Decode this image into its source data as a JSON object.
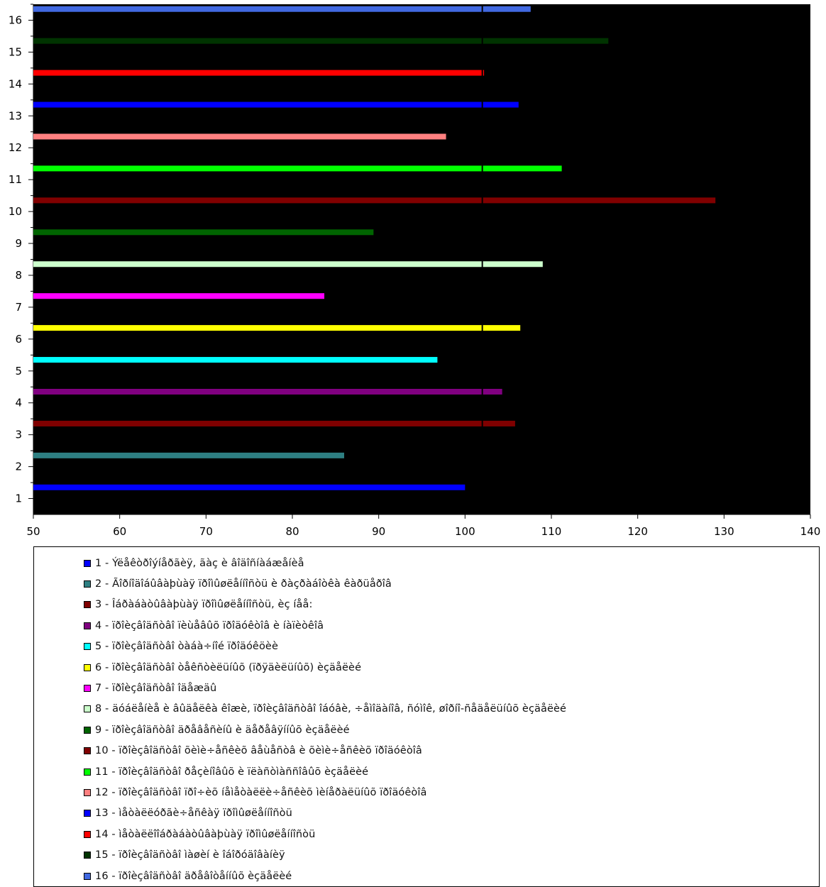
{
  "chart_data": {
    "type": "bar",
    "orientation": "horizontal",
    "background": "#000000",
    "xlim": [
      50,
      140
    ],
    "x_ticks": [
      50,
      60,
      70,
      80,
      90,
      100,
      110,
      120,
      130,
      140
    ],
    "x_tick_labels": [
      "50",
      "60",
      "70",
      "80",
      "90",
      "100",
      "110",
      "120",
      "130",
      "140"
    ],
    "categories": [
      "1",
      "2",
      "3",
      "4",
      "5",
      "6",
      "7",
      "8",
      "9",
      "10",
      "11",
      "12",
      "13",
      "14",
      "15",
      "16"
    ],
    "values": [
      100.0,
      86.0,
      105.8,
      104.3,
      96.8,
      106.4,
      83.7,
      109.0,
      89.4,
      129.0,
      111.2,
      97.8,
      106.2,
      102.2,
      116.6,
      107.6
    ],
    "colors": [
      "#0000ff",
      "#2e7f82",
      "#7f0000",
      "#800080",
      "#00ffff",
      "#ffff00",
      "#ff00ff",
      "#ccffcc",
      "#006400",
      "#800000",
      "#00ff00",
      "#ff8080",
      "#0000ff",
      "#ff0000",
      "#003300",
      "#4169e1"
    ],
    "reference_x": 102,
    "legend": {
      "placement": "bottom",
      "entries": [
        "1 - Ýëåêòðîýíåðãèÿ, ãàç è âîäîñíàáæåíèå",
        "2 - Ãîðíîäîáûâàþùàÿ ïðîìûøëåííîñòü è ðàçðàáîòêà êàðüåðîâ",
        "3 - Îáðàáàòûâàþùàÿ ïðîìûøëåííîñòü, èç íåå:",
        "4 - ïðîèçâîäñòâî ïèùåâûõ ïðîäóêòîâ è íàïèòêîâ",
        "5 - ïðîèçâîäñòâî òàáà÷íîé ïðîäóêöèè",
        "6 - ïðîèçâîäñòâî òåêñòèëüíûõ (ïðÿäèëüíûõ) èçäåëèé",
        "7 - ïðîèçâîäñòâî îäåæäû",
        "8 - äóáëåíèå è âûäåëêà êîæè, ïðîèçâîäñòâî îáóâè, ÷åìîäàíîâ, ñóìîê, øîðíî-ñåäåëüíûõ èçäåëèé",
        "9 - ïðîèçâîäñòâî äðåâåñèíû è äåðåâÿííûõ èçäåëèé",
        "10 - ïðîèçâîäñòâî õèìè÷åñêèõ âåùåñòâ è õèìè÷åñêèõ ïðîäóêòîâ",
        "11 - ïðîèçâîäñòâî ðåçèíîâûõ è ïëàñòìàññîâûõ èçäåëèé",
        "12 - ïðîèçâîäñòâî ïðî÷èõ íåìåòàëëè÷åñêèõ ìèíåðàëüíûõ ïðîäóêòîâ",
        "13 - ìåòàëëóðãè÷åñêàÿ ïðîìûøëåííîñòü",
        "14 - ìåòàëëîîáðàáàòûâàþùàÿ ïðîìûøëåííîñòü",
        "15 - ïðîèçâîäñòâî ìàøèí è îáîðóäîâàíèÿ",
        "16 - ïðîèçâîäñòâî äðåâîòåííûõ èçäåëèé"
      ]
    }
  }
}
